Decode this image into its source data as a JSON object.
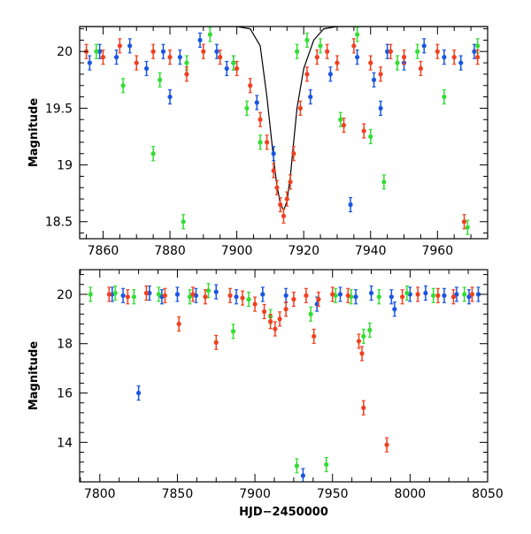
{
  "colors": {
    "blue": "#1a56e0",
    "green": "#33dd33",
    "red": "#f04020",
    "model": "#000000"
  },
  "chart_data": [
    {
      "type": "scatter",
      "panel": "top",
      "title": "",
      "xlabel": "",
      "ylabel": "Magnitude",
      "xlim": [
        7853,
        7975
      ],
      "ylim": [
        20.22,
        18.35
      ],
      "y_inverted": true,
      "x_ticks": [
        7860,
        7880,
        7900,
        7920,
        7940,
        7960
      ],
      "x_tick_labels": [
        "7860",
        "7880",
        "7900",
        "7920",
        "7940",
        "7960"
      ],
      "y_ticks": [
        18.5,
        19,
        19.5,
        20
      ],
      "y_tick_labels": [
        "18.5",
        "19",
        "19.5",
        "20"
      ],
      "model_curve": {
        "x": [
          7853,
          7900,
          7904,
          7907,
          7909,
          7911,
          7912,
          7913,
          7914,
          7915,
          7916,
          7917,
          7918,
          7920,
          7923,
          7926,
          7930,
          7975
        ],
        "y": [
          20.22,
          20.22,
          20.2,
          20.05,
          19.6,
          19.05,
          18.82,
          18.66,
          18.6,
          18.68,
          18.9,
          19.2,
          19.5,
          19.85,
          20.1,
          20.2,
          20.22,
          20.22
        ]
      },
      "series": [
        {
          "name": "",
          "color": "blue",
          "x": [
            7856,
            7859,
            7864,
            7868,
            7873,
            7878,
            7883,
            7889,
            7894,
            7899,
            7906,
            7911,
            7922,
            7928,
            7936,
            7941,
            7945,
            7950,
            7956,
            7962,
            7967,
            7971,
            7934,
            7943,
            7880,
            7897
          ],
          "y": [
            19.9,
            20.0,
            19.95,
            20.05,
            19.85,
            20.0,
            19.95,
            20.1,
            20.0,
            19.9,
            19.55,
            19.1,
            19.6,
            19.8,
            19.95,
            19.75,
            20.0,
            19.9,
            20.05,
            19.95,
            19.9,
            20.0,
            18.65,
            19.5,
            19.6,
            19.85
          ]
        },
        {
          "name": "",
          "color": "green",
          "x": [
            7858,
            7866,
            7875,
            7884,
            7885,
            7892,
            7899,
            7903,
            7907,
            7918,
            7921,
            7925,
            7931,
            7936,
            7944,
            7948,
            7954,
            7962,
            7969,
            7972,
            7877,
            7940
          ],
          "y": [
            20.0,
            19.7,
            19.1,
            18.5,
            19.9,
            20.15,
            19.9,
            19.5,
            19.2,
            20.0,
            20.1,
            20.05,
            19.4,
            20.15,
            18.85,
            19.9,
            20.0,
            19.6,
            18.45,
            20.05,
            19.75,
            19.25
          ]
        },
        {
          "name": "",
          "color": "red",
          "x": [
            7855,
            7860,
            7865,
            7870,
            7875,
            7880,
            7885,
            7890,
            7895,
            7900,
            7904,
            7907,
            7909,
            7911,
            7912,
            7913,
            7914,
            7915,
            7916,
            7917,
            7919,
            7921,
            7924,
            7927,
            7930,
            7935,
            7940,
            7943,
            7946,
            7950,
            7955,
            7960,
            7965,
            7968,
            7972,
            7932,
            7938
          ],
          "y": [
            20.0,
            19.95,
            20.05,
            19.9,
            20.0,
            19.95,
            19.8,
            20.0,
            19.95,
            19.85,
            19.7,
            19.4,
            19.2,
            18.95,
            18.8,
            18.65,
            18.55,
            18.7,
            18.85,
            19.1,
            19.5,
            19.8,
            19.95,
            20.0,
            19.9,
            20.05,
            19.9,
            19.8,
            20.0,
            19.95,
            19.85,
            20.0,
            19.95,
            18.5,
            19.95,
            19.35,
            19.3
          ]
        }
      ]
    },
    {
      "type": "scatter",
      "panel": "bottom",
      "title": "",
      "xlabel": "HJD−2450000",
      "ylabel": "Magnitude",
      "xlim": [
        7787,
        8050
      ],
      "ylim": [
        21.0,
        12.4
      ],
      "y_inverted": true,
      "x_ticks": [
        7800,
        7850,
        7900,
        7950,
        8000,
        8050
      ],
      "x_tick_labels": [
        "7800",
        "7850",
        "7900",
        "7950",
        "8000",
        "8050"
      ],
      "y_ticks": [
        14,
        16,
        18,
        20
      ],
      "y_tick_labels": [
        "14",
        "16",
        "18",
        "20"
      ],
      "series": [
        {
          "name": "",
          "color": "blue",
          "x": [
            7808,
            7815,
            7825,
            7832,
            7840,
            7850,
            7862,
            7875,
            7888,
            7905,
            7920,
            7931,
            7940,
            7955,
            7965,
            7975,
            7988,
            8000,
            8010,
            8022,
            8030,
            8038,
            8044,
            7990
          ],
          "y": [
            20.0,
            19.95,
            16.0,
            20.05,
            19.9,
            20.0,
            19.95,
            20.1,
            19.9,
            20.0,
            19.95,
            12.65,
            19.6,
            20.0,
            19.9,
            20.05,
            19.9,
            20.0,
            20.05,
            19.95,
            20.0,
            19.9,
            20.0,
            19.4
          ]
        },
        {
          "name": "",
          "color": "green",
          "x": [
            7794,
            7810,
            7822,
            7838,
            7858,
            7870,
            7886,
            7896,
            7910,
            7927,
            7936,
            7946,
            7952,
            7962,
            7970,
            7974,
            7980,
            7998,
            8015,
            8035
          ],
          "y": [
            20.0,
            20.05,
            19.9,
            20.0,
            19.9,
            20.15,
            18.5,
            19.8,
            19.1,
            13.05,
            19.2,
            13.1,
            19.95,
            19.9,
            18.3,
            18.55,
            19.9,
            20.05,
            19.95,
            20.0
          ]
        },
        {
          "name": "",
          "color": "red",
          "x": [
            7806,
            7818,
            7830,
            7842,
            7851,
            7860,
            7868,
            7875,
            7884,
            7892,
            7900,
            7906,
            7910,
            7913,
            7916,
            7920,
            7925,
            7933,
            7938,
            7941,
            7950,
            7960,
            7967,
            7969,
            7970,
            7985,
            7995,
            8005,
            8018,
            8028,
            8040
          ],
          "y": [
            20.0,
            19.9,
            20.05,
            19.95,
            18.8,
            20.0,
            19.9,
            18.05,
            19.95,
            19.85,
            19.6,
            19.3,
            18.9,
            18.6,
            19.0,
            19.4,
            19.8,
            19.95,
            18.3,
            19.8,
            20.0,
            19.95,
            18.1,
            17.6,
            15.4,
            13.9,
            19.9,
            20.0,
            19.95,
            19.9,
            20.0
          ]
        }
      ]
    }
  ]
}
